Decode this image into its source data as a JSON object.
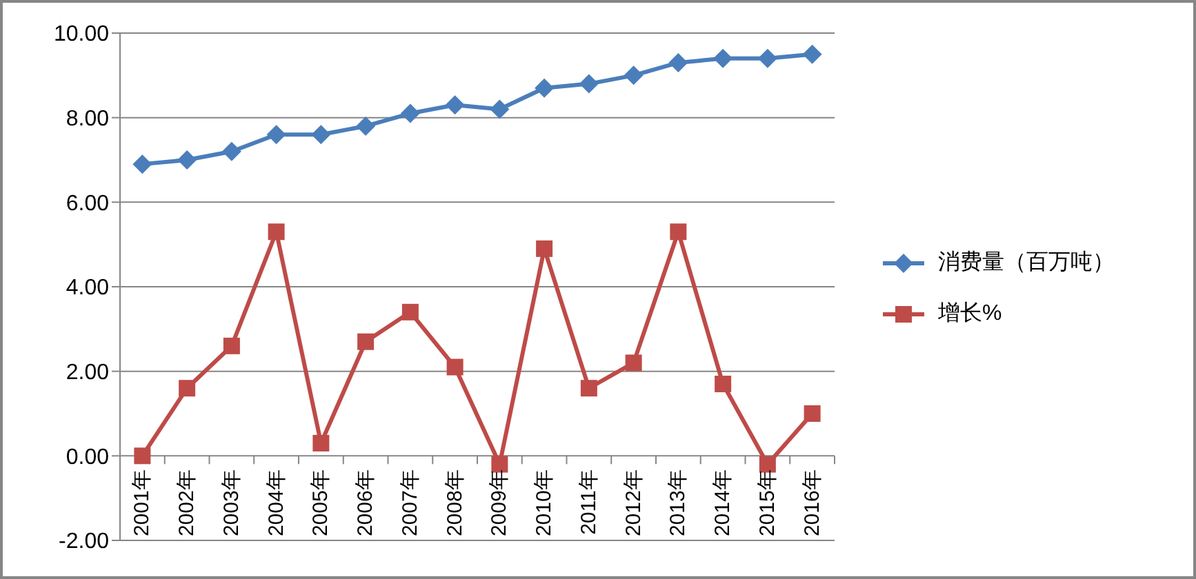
{
  "chart_data": {
    "type": "line",
    "categories": [
      "2001年",
      "2002年",
      "2003年",
      "2004年",
      "2005年",
      "2006年",
      "2007年",
      "2008年",
      "2009年",
      "2010年",
      "2011年",
      "2012年",
      "2013年",
      "2014年",
      "2015年",
      "2016年"
    ],
    "series": [
      {
        "name": "消费量（百万吨）",
        "color": "#4a7ebb",
        "marker": "diamond",
        "values": [
          6.9,
          7.0,
          7.2,
          7.6,
          7.6,
          7.8,
          8.1,
          8.3,
          8.2,
          8.7,
          8.8,
          9.0,
          9.3,
          9.4,
          9.4,
          9.5
        ]
      },
      {
        "name": "增长%",
        "color": "#be4b48",
        "marker": "square",
        "values": [
          0.0,
          1.6,
          2.6,
          5.3,
          0.3,
          2.7,
          3.4,
          2.1,
          -0.2,
          4.9,
          1.6,
          2.2,
          5.3,
          1.7,
          -0.2,
          1.0
        ]
      }
    ],
    "ylim": [
      -2,
      10
    ],
    "yticks": [
      {
        "value": -2,
        "label": "-2.00"
      },
      {
        "value": 0,
        "label": "0.00"
      },
      {
        "value": 2,
        "label": "2.00"
      },
      {
        "value": 4,
        "label": "4.00"
      },
      {
        "value": 6,
        "label": "6.00"
      },
      {
        "value": 8,
        "label": "8.00"
      },
      {
        "value": 10,
        "label": "10.00"
      }
    ],
    "grid": "y",
    "legend": "right",
    "line_style": "solid"
  }
}
